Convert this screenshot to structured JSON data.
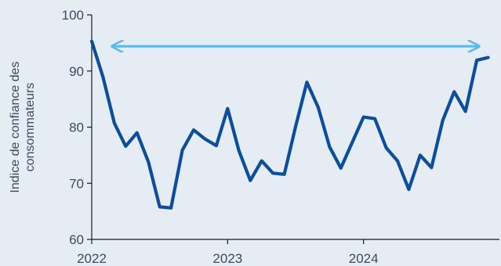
{
  "chart_data": {
    "type": "line",
    "title": "",
    "ylabel": [
      "Indice de confiance des",
      "consommateurs"
    ],
    "xlabel": "",
    "ylim": [
      60,
      100
    ],
    "xlim": [
      2022.0,
      2025.0
    ],
    "yticks": [
      60,
      70,
      80,
      90,
      100
    ],
    "xticks": [
      {
        "value": 2022.0,
        "label": "2022"
      },
      {
        "value": 2023.0,
        "label": "2023"
      },
      {
        "value": 2024.0,
        "label": "2024"
      }
    ],
    "grid": false,
    "series": [
      {
        "color": "#0b4f9c",
        "points": [
          [
            2022.0,
            95.3
          ],
          [
            2022.083,
            88.9
          ],
          [
            2022.167,
            80.7
          ],
          [
            2022.25,
            76.6
          ],
          [
            2022.333,
            79.0
          ],
          [
            2022.417,
            73.8
          ],
          [
            2022.5,
            65.8
          ],
          [
            2022.583,
            65.6
          ],
          [
            2022.667,
            75.9
          ],
          [
            2022.75,
            79.5
          ],
          [
            2022.833,
            77.9
          ],
          [
            2022.917,
            76.7
          ],
          [
            2023.0,
            83.3
          ],
          [
            2023.083,
            75.8
          ],
          [
            2023.167,
            70.5
          ],
          [
            2023.25,
            74.0
          ],
          [
            2023.333,
            71.8
          ],
          [
            2023.417,
            71.6
          ],
          [
            2023.5,
            80.1
          ],
          [
            2023.583,
            88.0
          ],
          [
            2023.667,
            83.5
          ],
          [
            2023.75,
            76.5
          ],
          [
            2023.833,
            72.7
          ],
          [
            2023.917,
            77.3
          ],
          [
            2024.0,
            81.8
          ],
          [
            2024.083,
            81.5
          ],
          [
            2024.167,
            76.3
          ],
          [
            2024.25,
            74.0
          ],
          [
            2024.333,
            68.9
          ],
          [
            2024.417,
            75.0
          ],
          [
            2024.5,
            72.8
          ],
          [
            2024.583,
            81.2
          ],
          [
            2024.667,
            86.3
          ],
          [
            2024.75,
            82.8
          ],
          [
            2024.833,
            91.9
          ],
          [
            2024.917,
            92.4
          ]
        ]
      }
    ],
    "annotations": [
      {
        "type": "double-arrow",
        "from": [
          2022.15,
          94.4
        ],
        "to": [
          2024.85,
          94.4
        ],
        "color": "#5ab9ea"
      }
    ]
  }
}
